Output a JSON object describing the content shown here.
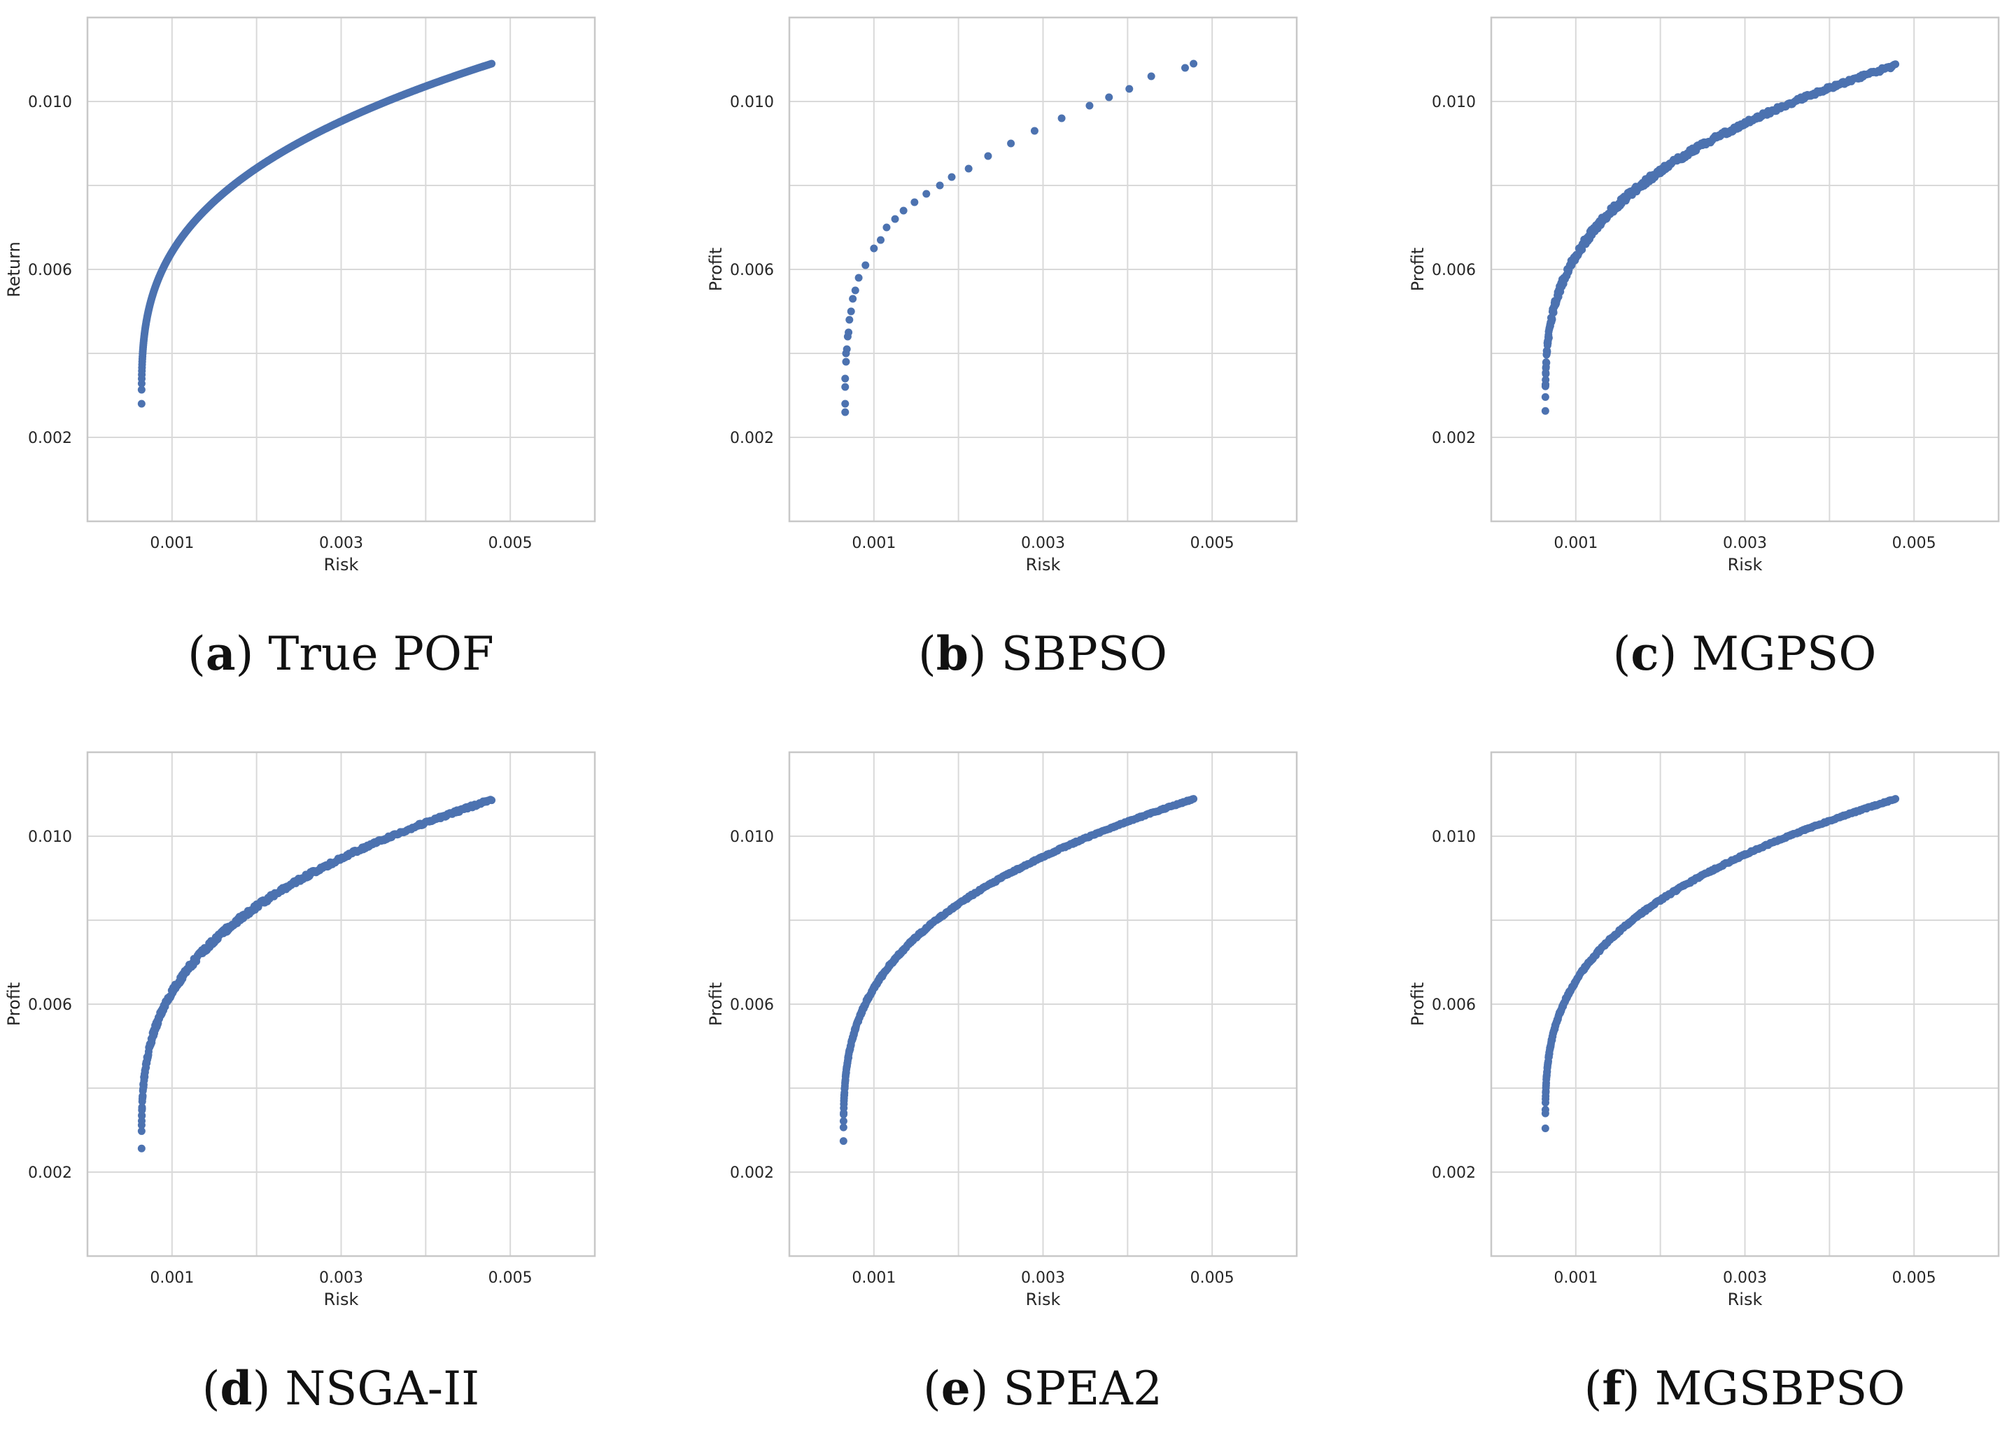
{
  "figure": {
    "accent_color": "#4c72b0",
    "grid_color": "#d9d9d9",
    "frame_color": "#c8c8c8"
  },
  "chart_data": [
    {
      "id": "a",
      "type": "scatter",
      "series_name": "True POF",
      "caption_letter": "a",
      "caption_text": "True POF",
      "xlabel": "Risk",
      "ylabel": "Return",
      "xlim": [
        0.0,
        0.006
      ],
      "ylim": [
        0.0,
        0.012
      ],
      "xticks": [
        0.001,
        0.003,
        0.005
      ],
      "xtick_labels": [
        "0.001",
        "0.003",
        "0.005"
      ],
      "yticks": [
        0.002,
        0.006,
        0.01
      ],
      "ytick_labels": [
        "0.002",
        "0.006",
        "0.010"
      ],
      "x_gridlines": [
        0.001,
        0.002,
        0.003,
        0.004,
        0.005
      ],
      "y_gridlines": [
        0.002,
        0.004,
        0.006,
        0.008,
        0.01
      ],
      "front": {
        "x_min": 0.00064,
        "x_max": 0.00478,
        "y_min": 0.0028,
        "y_max": 0.0109,
        "points": 420,
        "noise": 0.0,
        "dense": true
      }
    },
    {
      "id": "b",
      "type": "scatter",
      "series_name": "SBPSO",
      "caption_letter": "b",
      "caption_text": "SBPSO",
      "xlabel": "Risk",
      "ylabel": "Profit",
      "xlim": [
        0.0,
        0.006
      ],
      "ylim": [
        0.0,
        0.012
      ],
      "xticks": [
        0.001,
        0.003,
        0.005
      ],
      "xtick_labels": [
        "0.001",
        "0.003",
        "0.005"
      ],
      "yticks": [
        0.002,
        0.006,
        0.01
      ],
      "ytick_labels": [
        "0.002",
        "0.006",
        "0.010"
      ],
      "x_gridlines": [
        0.001,
        0.002,
        0.003,
        0.004,
        0.005
      ],
      "y_gridlines": [
        0.002,
        0.004,
        0.006,
        0.008,
        0.01
      ],
      "points": [
        [
          0.00066,
          0.0026
        ],
        [
          0.00066,
          0.0028
        ],
        [
          0.00066,
          0.0032
        ],
        [
          0.00066,
          0.0034
        ],
        [
          0.00067,
          0.0038
        ],
        [
          0.00067,
          0.004
        ],
        [
          0.00068,
          0.0041
        ],
        [
          0.00069,
          0.0044
        ],
        [
          0.0007,
          0.0045
        ],
        [
          0.00071,
          0.0048
        ],
        [
          0.00073,
          0.005
        ],
        [
          0.00075,
          0.0053
        ],
        [
          0.00078,
          0.0055
        ],
        [
          0.00082,
          0.0058
        ],
        [
          0.0009,
          0.0061
        ],
        [
          0.001,
          0.0065
        ],
        [
          0.00108,
          0.0067
        ],
        [
          0.00115,
          0.007
        ],
        [
          0.00125,
          0.0072
        ],
        [
          0.00135,
          0.0074
        ],
        [
          0.00148,
          0.0076
        ],
        [
          0.00162,
          0.0078
        ],
        [
          0.00178,
          0.008
        ],
        [
          0.00192,
          0.0082
        ],
        [
          0.00212,
          0.0084
        ],
        [
          0.00235,
          0.0087
        ],
        [
          0.00262,
          0.009
        ],
        [
          0.0029,
          0.0093
        ],
        [
          0.00322,
          0.0096
        ],
        [
          0.00355,
          0.0099
        ],
        [
          0.00378,
          0.0101
        ],
        [
          0.00402,
          0.0103
        ],
        [
          0.00428,
          0.0106
        ],
        [
          0.00468,
          0.0108
        ],
        [
          0.00478,
          0.0109
        ]
      ]
    },
    {
      "id": "c",
      "type": "scatter",
      "series_name": "MGPSO",
      "caption_letter": "c",
      "caption_text": "MGPSO",
      "xlabel": "Risk",
      "ylabel": "Profit",
      "xlim": [
        0.0,
        0.006
      ],
      "ylim": [
        0.0,
        0.012
      ],
      "xticks": [
        0.001,
        0.003,
        0.005
      ],
      "xtick_labels": [
        "0.001",
        "0.003",
        "0.005"
      ],
      "yticks": [
        0.002,
        0.006,
        0.01
      ],
      "ytick_labels": [
        "0.002",
        "0.006",
        "0.010"
      ],
      "x_gridlines": [
        0.001,
        0.002,
        0.003,
        0.004,
        0.005
      ],
      "y_gridlines": [
        0.002,
        0.004,
        0.006,
        0.008,
        0.01
      ],
      "front": {
        "x_min": 0.00064,
        "x_max": 0.00478,
        "y_min": 0.0028,
        "y_max": 0.0109,
        "points": 460,
        "noise": 0.00022,
        "dense": false
      }
    },
    {
      "id": "d",
      "type": "scatter",
      "series_name": "NSGA-II",
      "caption_letter": "d",
      "caption_text": "NSGA-II",
      "xlabel": "Risk",
      "ylabel": "Profit",
      "xlim": [
        0.0,
        0.006
      ],
      "ylim": [
        0.0,
        0.012
      ],
      "xticks": [
        0.001,
        0.003,
        0.005
      ],
      "xtick_labels": [
        "0.001",
        "0.003",
        "0.005"
      ],
      "yticks": [
        0.002,
        0.006,
        0.01
      ],
      "ytick_labels": [
        "0.002",
        "0.006",
        "0.010"
      ],
      "x_gridlines": [
        0.001,
        0.002,
        0.003,
        0.004,
        0.005
      ],
      "y_gridlines": [
        0.002,
        0.004,
        0.006,
        0.008,
        0.01
      ],
      "front": {
        "x_min": 0.00064,
        "x_max": 0.00478,
        "y_min": 0.0027,
        "y_max": 0.0109,
        "points": 460,
        "noise": 0.00018,
        "dense": false
      }
    },
    {
      "id": "e",
      "type": "scatter",
      "series_name": "SPEA2",
      "caption_letter": "e",
      "caption_text": "SPEA2",
      "xlabel": "Risk",
      "ylabel": "Profit",
      "xlim": [
        0.0,
        0.006
      ],
      "ylim": [
        0.0,
        0.012
      ],
      "xticks": [
        0.001,
        0.003,
        0.005
      ],
      "xtick_labels": [
        "0.001",
        "0.003",
        "0.005"
      ],
      "yticks": [
        0.002,
        0.006,
        0.01
      ],
      "ytick_labels": [
        "0.002",
        "0.006",
        "0.010"
      ],
      "x_gridlines": [
        0.001,
        0.002,
        0.003,
        0.004,
        0.005
      ],
      "y_gridlines": [
        0.002,
        0.004,
        0.006,
        0.008,
        0.01
      ],
      "front": {
        "x_min": 0.00064,
        "x_max": 0.00478,
        "y_min": 0.0028,
        "y_max": 0.0109,
        "points": 440,
        "noise": 8e-05,
        "dense": false
      }
    },
    {
      "id": "f",
      "type": "scatter",
      "series_name": "MGSBPSO",
      "caption_letter": "f",
      "caption_text": "MGSBPSO",
      "xlabel": "Risk",
      "ylabel": "Profit",
      "xlim": [
        0.0,
        0.006
      ],
      "ylim": [
        0.0,
        0.012
      ],
      "xticks": [
        0.001,
        0.003,
        0.005
      ],
      "xtick_labels": [
        "0.001",
        "0.003",
        "0.005"
      ],
      "yticks": [
        0.002,
        0.006,
        0.01
      ],
      "ytick_labels": [
        "0.002",
        "0.006",
        "0.010"
      ],
      "x_gridlines": [
        0.001,
        0.002,
        0.003,
        0.004,
        0.005
      ],
      "y_gridlines": [
        0.002,
        0.004,
        0.006,
        0.008,
        0.01
      ],
      "front": {
        "x_min": 0.00064,
        "x_max": 0.00478,
        "y_min": 0.0031,
        "y_max": 0.0109,
        "points": 440,
        "noise": 8e-05,
        "dense": false
      }
    }
  ]
}
